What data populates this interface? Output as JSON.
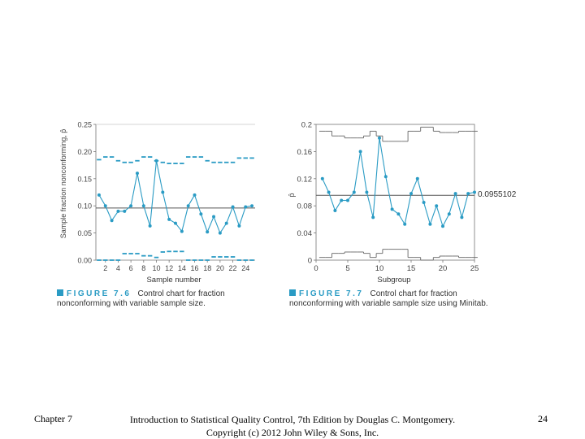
{
  "colors": {
    "accent": "#2a9bc4",
    "axis": "#555555",
    "limit_gray": "#666666"
  },
  "chart_data": [
    {
      "type": "line",
      "title": "",
      "xlabel": "Sample number",
      "ylabel": "Sample fraction nonconforming, p̂",
      "xlim": [
        0.5,
        25.5
      ],
      "ylim": [
        0,
        0.25
      ],
      "x_ticks": [
        2,
        4,
        6,
        8,
        10,
        12,
        14,
        16,
        18,
        20,
        22,
        24
      ],
      "y_ticks": [
        0,
        0.05,
        0.1,
        0.15,
        0.2,
        0.25
      ],
      "y_tick_labels": [
        "0.00",
        "0.05",
        "0.10",
        "0.15",
        "0.20",
        "0.25"
      ],
      "center_line": 0.096,
      "x": [
        1,
        2,
        3,
        4,
        5,
        6,
        7,
        8,
        9,
        10,
        11,
        12,
        13,
        14,
        15,
        16,
        17,
        18,
        19,
        20,
        21,
        22,
        23,
        24,
        25
      ],
      "values": [
        0.12,
        0.1,
        0.073,
        0.09,
        0.09,
        0.1,
        0.16,
        0.1,
        0.063,
        0.183,
        0.125,
        0.075,
        0.068,
        0.053,
        0.1,
        0.12,
        0.085,
        0.052,
        0.08,
        0.05,
        0.068,
        0.098,
        0.063,
        0.098,
        0.1
      ],
      "ucl": [
        0.185,
        0.19,
        0.19,
        0.183,
        0.18,
        0.18,
        0.183,
        0.19,
        0.19,
        0.183,
        0.18,
        0.178,
        0.178,
        0.178,
        0.19,
        0.19,
        0.19,
        0.183,
        0.18,
        0.18,
        0.18,
        0.18,
        0.188,
        0.188,
        0.188
      ],
      "lcl": [
        0.0,
        0.0,
        0.0,
        0.0,
        0.012,
        0.012,
        0.012,
        0.008,
        0.008,
        0.005,
        0.015,
        0.016,
        0.016,
        0.016,
        0.0,
        0.0,
        0.0,
        0.0,
        0.006,
        0.006,
        0.006,
        0.006,
        0.0,
        0.0,
        0.0
      ],
      "caption_label": "FIGURE 7.6",
      "caption_text": "Control chart for fraction nonconforming with variable sample size."
    },
    {
      "type": "line",
      "title": "",
      "xlabel": "Subgroup",
      "ylabel": "p̂",
      "xlim": [
        0,
        25
      ],
      "ylim": [
        0,
        0.2
      ],
      "x_ticks": [
        0,
        5,
        10,
        15,
        20,
        25
      ],
      "y_ticks": [
        0,
        0.04,
        0.08,
        0.12,
        0.16,
        0.2
      ],
      "y_tick_labels": [
        "0",
        "0.04",
        "0.08",
        "0.12",
        "0.16",
        "0.2"
      ],
      "center_line": 0.0955102,
      "center_label": "0.0955102",
      "x": [
        1,
        2,
        3,
        4,
        5,
        6,
        7,
        8,
        9,
        10,
        11,
        12,
        13,
        14,
        15,
        16,
        17,
        18,
        19,
        20,
        21,
        22,
        23,
        24,
        25
      ],
      "values": [
        0.12,
        0.1,
        0.073,
        0.088,
        0.088,
        0.1,
        0.16,
        0.1,
        0.063,
        0.18,
        0.123,
        0.075,
        0.068,
        0.053,
        0.098,
        0.12,
        0.085,
        0.053,
        0.08,
        0.05,
        0.068,
        0.098,
        0.063,
        0.098,
        0.1
      ],
      "ucl": [
        0.19,
        0.19,
        0.183,
        0.183,
        0.18,
        0.18,
        0.18,
        0.183,
        0.19,
        0.183,
        0.175,
        0.175,
        0.175,
        0.175,
        0.19,
        0.19,
        0.196,
        0.196,
        0.19,
        0.188,
        0.188,
        0.188,
        0.19,
        0.19,
        0.19
      ],
      "lcl": [
        0.004,
        0.004,
        0.01,
        0.01,
        0.012,
        0.012,
        0.012,
        0.01,
        0.004,
        0.01,
        0.016,
        0.016,
        0.016,
        0.016,
        0.004,
        0.004,
        0.0,
        0.0,
        0.004,
        0.006,
        0.006,
        0.006,
        0.004,
        0.004,
        0.004
      ],
      "caption_label": "FIGURE 7.7",
      "caption_text": "Control chart for fraction nonconforming with variable sample size using Minitab."
    }
  ],
  "footer": {
    "chapter": "Chapter 7",
    "citation_line1": "Introduction to Statistical Quality Control, 7th Edition by Douglas C. Montgomery.",
    "citation_line2": "Copyright (c) 2012  John Wiley & Sons, Inc.",
    "page_number": "24"
  }
}
